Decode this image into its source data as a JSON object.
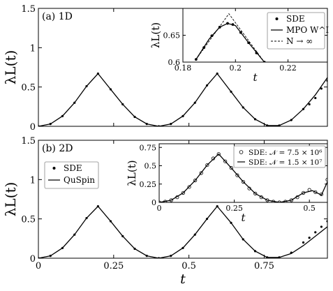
{
  "chart_data": [
    {
      "id": "main_a",
      "type": "line",
      "panel_label": "(a) 1D",
      "ylabel": "λL(t)",
      "xlabel": "",
      "xlim": [
        0,
        0.96
      ],
      "ylim": [
        0,
        1.5
      ],
      "xticks": [],
      "yticks": [
        {
          "v": 0,
          "label": "0"
        },
        {
          "v": 0.5,
          "label": "0.5"
        },
        {
          "v": 1,
          "label": "1"
        },
        {
          "v": 1.5,
          "label": "1.5"
        }
      ],
      "series": [
        {
          "name": "MPO",
          "style": "solid",
          "x": [
            0,
            0.04,
            0.08,
            0.12,
            0.16,
            0.198,
            0.24,
            0.28,
            0.32,
            0.36,
            0.4,
            0.44,
            0.48,
            0.52,
            0.56,
            0.594,
            0.64,
            0.68,
            0.72,
            0.76,
            0.8,
            0.84,
            0.88,
            0.92,
            0.96
          ],
          "y": [
            0,
            0.03,
            0.13,
            0.3,
            0.51,
            0.67,
            0.47,
            0.28,
            0.12,
            0.03,
            0,
            0.03,
            0.13,
            0.3,
            0.52,
            0.67,
            0.44,
            0.24,
            0.09,
            0.01,
            0.01,
            0.08,
            0.22,
            0.4,
            0.62
          ]
        },
        {
          "name": "SDE",
          "style": "dots",
          "x": [
            0,
            0.04,
            0.08,
            0.12,
            0.16,
            0.198,
            0.24,
            0.28,
            0.32,
            0.36,
            0.4,
            0.44,
            0.48,
            0.52,
            0.56,
            0.594,
            0.64,
            0.68,
            0.72,
            0.76,
            0.8,
            0.84,
            0.88,
            0.9,
            0.92,
            0.94,
            0.96
          ],
          "y": [
            0,
            0.03,
            0.13,
            0.3,
            0.51,
            0.67,
            0.47,
            0.28,
            0.12,
            0.03,
            0,
            0.03,
            0.13,
            0.3,
            0.52,
            0.67,
            0.44,
            0.24,
            0.09,
            0.01,
            0.01,
            0.08,
            0.22,
            0.28,
            0.36,
            0.48,
            0.58
          ]
        }
      ]
    },
    {
      "id": "inset_a",
      "type": "line",
      "ylabel": "λL(t)",
      "xlabel": "t",
      "xlim": [
        0.18,
        0.235
      ],
      "ylim": [
        0.6,
        0.7
      ],
      "xticks": [
        {
          "v": 0.18,
          "label": "0.18"
        },
        {
          "v": 0.2,
          "label": "0.2"
        },
        {
          "v": 0.22,
          "label": "0.22"
        }
      ],
      "yticks": [
        {
          "v": 0.6,
          "label": "0.6"
        },
        {
          "v": 0.65,
          "label": "0.65"
        }
      ],
      "legend": [
        {
          "label": "SDE",
          "style": "dots"
        },
        {
          "label": "MPO W^I",
          "style": "solid"
        },
        {
          "label": "N → ∞",
          "style": "dashed"
        }
      ],
      "series": [
        {
          "name": "SDE",
          "style": "dots",
          "x": [
            0.185,
            0.188,
            0.191,
            0.194,
            0.197,
            0.199,
            0.202,
            0.205,
            0.208,
            0.211
          ],
          "y": [
            0.605,
            0.627,
            0.649,
            0.665,
            0.672,
            0.67,
            0.655,
            0.636,
            0.617,
            0.6
          ]
        },
        {
          "name": "MPO",
          "style": "solid",
          "x": [
            0.185,
            0.19,
            0.194,
            0.197,
            0.2,
            0.205,
            0.211
          ],
          "y": [
            0.605,
            0.643,
            0.665,
            0.672,
            0.668,
            0.636,
            0.6
          ]
        },
        {
          "name": "N → ∞",
          "style": "dashed",
          "x": [
            0.185,
            0.1975,
            0.211
          ],
          "y": [
            0.605,
            0.69,
            0.6
          ]
        }
      ]
    },
    {
      "id": "main_b",
      "type": "line",
      "panel_label": "(b) 2D",
      "ylabel": "λL(t)",
      "xlabel": "t",
      "xlim": [
        0,
        0.96
      ],
      "ylim": [
        0,
        1.5
      ],
      "xticks": [
        {
          "v": 0,
          "label": "0"
        },
        {
          "v": 0.25,
          "label": "0.25"
        },
        {
          "v": 0.5,
          "label": "0.5"
        },
        {
          "v": 0.75,
          "label": "0.75"
        }
      ],
      "yticks": [
        {
          "v": 0,
          "label": "0"
        },
        {
          "v": 0.5,
          "label": "0.5"
        },
        {
          "v": 1,
          "label": "1"
        },
        {
          "v": 1.5,
          "label": "1.5"
        }
      ],
      "legend": [
        {
          "label": "SDE",
          "style": "dots"
        },
        {
          "label": "QuSpin",
          "style": "solid"
        }
      ],
      "series": [
        {
          "name": "QuSpin",
          "style": "solid",
          "x": [
            0,
            0.04,
            0.08,
            0.12,
            0.16,
            0.198,
            0.24,
            0.28,
            0.32,
            0.36,
            0.4,
            0.44,
            0.48,
            0.52,
            0.56,
            0.594,
            0.64,
            0.68,
            0.72,
            0.76,
            0.8,
            0.84,
            0.88,
            0.92,
            0.96
          ],
          "y": [
            0,
            0.03,
            0.13,
            0.3,
            0.51,
            0.66,
            0.47,
            0.28,
            0.12,
            0.03,
            0,
            0.03,
            0.13,
            0.3,
            0.5,
            0.66,
            0.45,
            0.24,
            0.09,
            0.01,
            0.01,
            0.06,
            0.16,
            0.28,
            0.4
          ]
        },
        {
          "name": "SDE",
          "style": "dots",
          "x": [
            0,
            0.04,
            0.08,
            0.12,
            0.16,
            0.198,
            0.24,
            0.28,
            0.32,
            0.36,
            0.4,
            0.44,
            0.48,
            0.52,
            0.56,
            0.594,
            0.64,
            0.68,
            0.72,
            0.76,
            0.8,
            0.84,
            0.88,
            0.9,
            0.92,
            0.94,
            0.96
          ],
          "y": [
            0,
            0.03,
            0.13,
            0.3,
            0.51,
            0.66,
            0.47,
            0.28,
            0.12,
            0.03,
            0,
            0.03,
            0.13,
            0.3,
            0.5,
            0.66,
            0.45,
            0.24,
            0.09,
            0.01,
            0.01,
            0.07,
            0.2,
            0.26,
            0.33,
            0.4,
            0.47
          ]
        }
      ]
    },
    {
      "id": "inset_b",
      "type": "line",
      "ylabel": "λL(t)",
      "xlabel": "t",
      "xlim": [
        0,
        0.56
      ],
      "ylim": [
        0,
        0.8
      ],
      "xticks": [
        {
          "v": 0,
          "label": "0"
        },
        {
          "v": 0.25,
          "label": "0.25"
        },
        {
          "v": 0.5,
          "label": "0.5"
        }
      ],
      "yticks": [
        {
          "v": 0,
          "label": "0"
        },
        {
          "v": 0.25,
          "label": "0.25"
        },
        {
          "v": 0.5,
          "label": "0.5"
        },
        {
          "v": 0.75,
          "label": "0.75"
        }
      ],
      "legend": [
        {
          "label": "SDE: 𝒩 = 7.5 × 10⁶",
          "style": "circles"
        },
        {
          "label": "SDE: 𝒩 = 1.5 × 10⁷",
          "style": "solid"
        }
      ],
      "series": [
        {
          "name": "SDE: 𝒩 = 1.5 × 10⁷",
          "style": "solid",
          "x": [
            0,
            0.04,
            0.08,
            0.12,
            0.16,
            0.198,
            0.24,
            0.28,
            0.32,
            0.36,
            0.4,
            0.44,
            0.48,
            0.51,
            0.54,
            0.56
          ],
          "y": [
            0,
            0.03,
            0.13,
            0.3,
            0.51,
            0.66,
            0.47,
            0.28,
            0.12,
            0.03,
            0,
            0.03,
            0.13,
            0.16,
            0.1,
            0.28
          ]
        },
        {
          "name": "SDE: 𝒩 = 7.5 × 10⁶",
          "style": "circles",
          "x": [
            0,
            0.02,
            0.04,
            0.06,
            0.08,
            0.1,
            0.12,
            0.14,
            0.16,
            0.18,
            0.198,
            0.22,
            0.24,
            0.26,
            0.28,
            0.3,
            0.32,
            0.34,
            0.36,
            0.38,
            0.4,
            0.42,
            0.44,
            0.46,
            0.48,
            0.5,
            0.52,
            0.54,
            0.56
          ],
          "y": [
            0,
            0.01,
            0.03,
            0.07,
            0.13,
            0.21,
            0.3,
            0.4,
            0.51,
            0.6,
            0.66,
            0.56,
            0.47,
            0.37,
            0.28,
            0.19,
            0.12,
            0.07,
            0.03,
            0.01,
            0,
            0.01,
            0.03,
            0.07,
            0.13,
            0.17,
            0.14,
            0.11,
            0.31
          ]
        }
      ]
    }
  ]
}
